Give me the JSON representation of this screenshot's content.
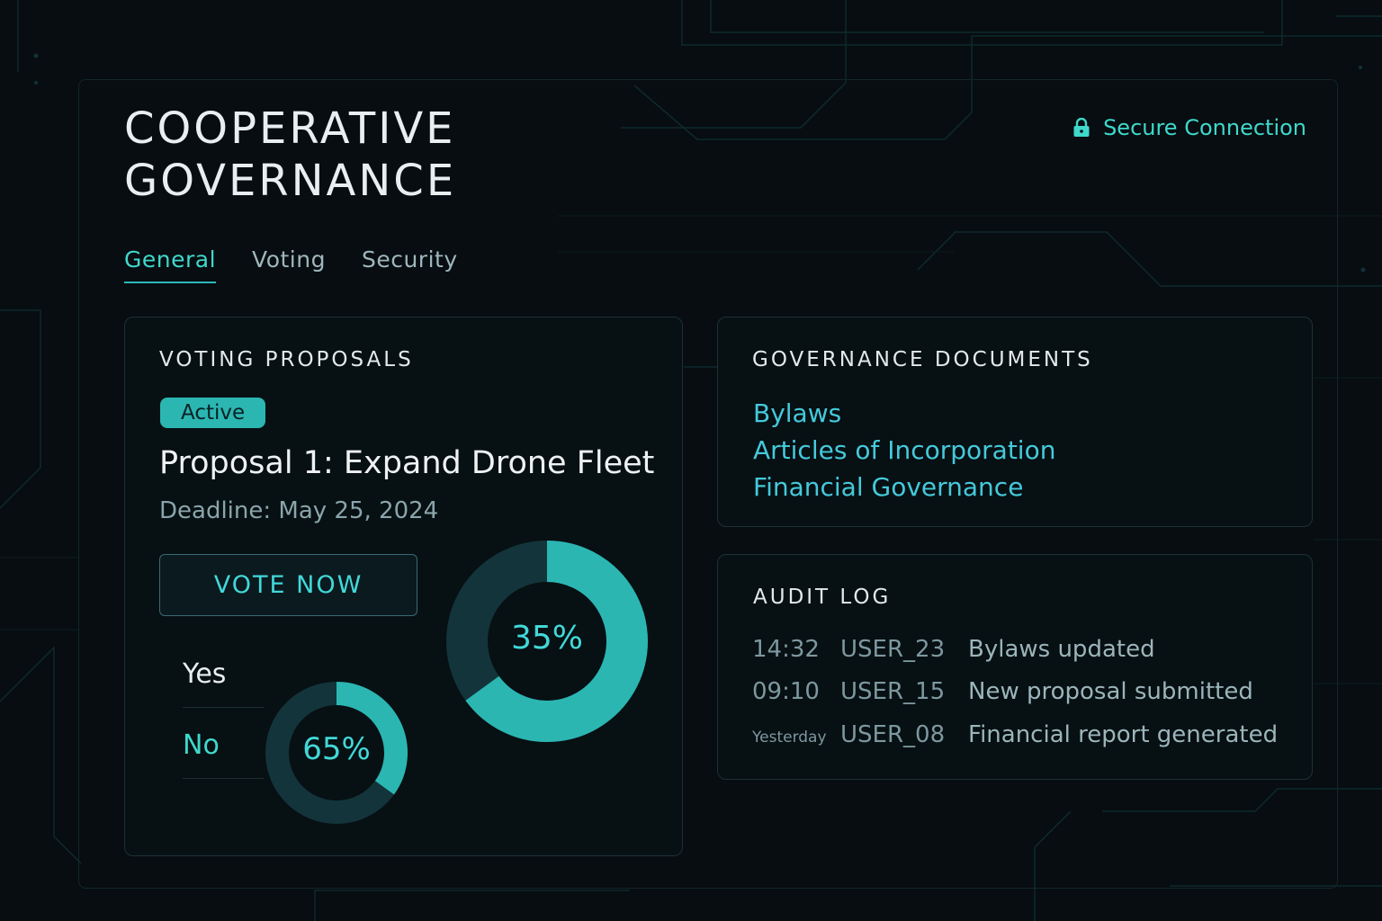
{
  "app": {
    "title_line1": "COOPERATIVE",
    "title_line2": "GOVERNANCE",
    "secure_label": "Secure Connection"
  },
  "tabs": [
    {
      "label": "General",
      "active": true
    },
    {
      "label": "Voting",
      "active": false
    },
    {
      "label": "Security",
      "active": false
    }
  ],
  "voting": {
    "heading": "VOTING PROPOSALS",
    "badge": "Active",
    "proposal_title": "Proposal 1: Expand Drone Fleet",
    "deadline": "Deadline: May 25, 2024",
    "vote_button": "VOTE NOW",
    "legend_yes": "Yes",
    "legend_no": "No",
    "chart_large_label": "35%",
    "chart_small_label": "65%"
  },
  "chart_data": [
    {
      "type": "pie",
      "values": [
        65,
        35
      ],
      "label": "35%"
    },
    {
      "type": "pie",
      "values": [
        35,
        65
      ],
      "label": "65%"
    }
  ],
  "documents": {
    "heading": "GOVERNANCE DOCUMENTS",
    "links": [
      "Bylaws",
      "Articles of Incorporation",
      "Financial Governance"
    ]
  },
  "audit": {
    "heading": "AUDIT LOG",
    "rows": [
      {
        "time": "14:32",
        "user": "USER_23",
        "event": "Bylaws updated"
      },
      {
        "time": "09:10",
        "user": "USER_15",
        "event": "New proposal submitted"
      },
      {
        "time": "Yesterday",
        "user": "USER_08",
        "event": "Financial report generated"
      }
    ]
  },
  "colors": {
    "background": "#070d10",
    "accent": "#2bb6b2",
    "accent_text": "#3fd8cb",
    "donut_track": "#13343a",
    "link": "#45c9db"
  },
  "icons": {
    "secure": "lock-icon"
  }
}
